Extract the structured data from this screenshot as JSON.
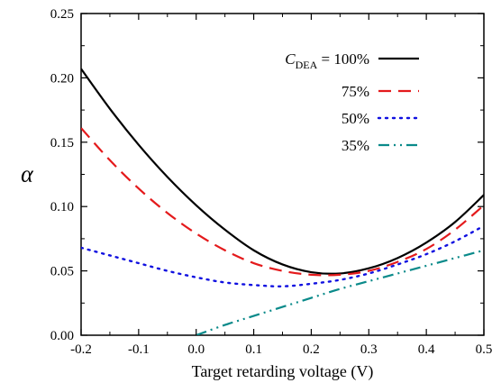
{
  "chart_data": {
    "type": "line",
    "title": "",
    "xlabel": "Target retarding voltage (V)",
    "ylabel": "α",
    "xlim": [
      -0.2,
      0.5
    ],
    "ylim": [
      0.0,
      0.25
    ],
    "x_ticks": [
      -0.2,
      -0.1,
      0.0,
      0.1,
      0.2,
      0.3,
      0.4,
      0.5
    ],
    "x_tick_labels": [
      "-0.2",
      "-0.1",
      "0.0",
      "0.1",
      "0.2",
      "0.3",
      "0.4",
      "0.5"
    ],
    "y_ticks": [
      0.0,
      0.05,
      0.1,
      0.15,
      0.2,
      0.25
    ],
    "y_tick_labels": [
      "0.00",
      "0.05",
      "0.10",
      "0.15",
      "0.20",
      "0.25"
    ],
    "grid": false,
    "legend_position": "top-right",
    "legend_prefix": {
      "main": "C",
      "sub": "DEA",
      "suffix": " = "
    },
    "series": [
      {
        "name": "100%",
        "color": "#000000",
        "style": "solid",
        "x": [
          -0.2,
          -0.15,
          -0.1,
          -0.05,
          0.0,
          0.05,
          0.1,
          0.15,
          0.2,
          0.25,
          0.3,
          0.35,
          0.4,
          0.45,
          0.5
        ],
        "y": [
          0.207,
          0.176,
          0.148,
          0.123,
          0.101,
          0.082,
          0.066,
          0.055,
          0.049,
          0.048,
          0.052,
          0.06,
          0.072,
          0.088,
          0.109
        ]
      },
      {
        "name": "75%",
        "color": "#e41a1c",
        "style": "dashed",
        "x": [
          -0.2,
          -0.15,
          -0.1,
          -0.05,
          0.0,
          0.05,
          0.1,
          0.15,
          0.2,
          0.25,
          0.3,
          0.35,
          0.4,
          0.45,
          0.5
        ],
        "y": [
          0.161,
          0.136,
          0.114,
          0.095,
          0.079,
          0.066,
          0.056,
          0.05,
          0.047,
          0.047,
          0.05,
          0.057,
          0.067,
          0.082,
          0.101
        ]
      },
      {
        "name": "50%",
        "color": "#1010e0",
        "style": "dotted",
        "x": [
          -0.2,
          -0.15,
          -0.1,
          -0.05,
          0.0,
          0.05,
          0.1,
          0.15,
          0.2,
          0.25,
          0.3,
          0.35,
          0.4,
          0.45,
          0.5
        ],
        "y": [
          0.068,
          0.062,
          0.056,
          0.05,
          0.045,
          0.041,
          0.039,
          0.038,
          0.04,
          0.043,
          0.048,
          0.055,
          0.063,
          0.073,
          0.085
        ]
      },
      {
        "name": "35%",
        "color": "#0a8a8a",
        "style": "dash-dot-dot",
        "x": [
          0.0,
          0.05,
          0.1,
          0.15,
          0.2,
          0.25,
          0.3,
          0.35,
          0.4,
          0.45,
          0.5
        ],
        "y": [
          0.0,
          0.008,
          0.015,
          0.022,
          0.029,
          0.036,
          0.042,
          0.048,
          0.054,
          0.06,
          0.066
        ]
      }
    ]
  }
}
